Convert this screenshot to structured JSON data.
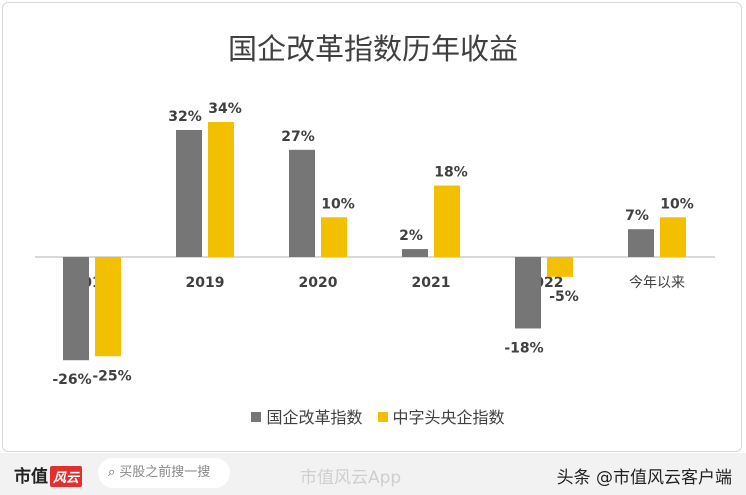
{
  "chart_data": {
    "type": "bar",
    "title": "国企改革指数历年收益",
    "categories": [
      "2018",
      "2019",
      "2020",
      "2021",
      "2022",
      "今年以来"
    ],
    "series": [
      {
        "name": "国企改革指数",
        "color": "#767676",
        "values": [
          -26,
          32,
          27,
          2,
          -18,
          7
        ],
        "labels": [
          "-26%",
          "32%",
          "27%",
          "2%",
          "-18%",
          "7%"
        ]
      },
      {
        "name": "中字头央企指数",
        "color": "#f2c000",
        "values": [
          -25,
          34,
          10,
          18,
          -5,
          10
        ],
        "labels": [
          "-25%",
          "34%",
          "10%",
          "18%",
          "-5%",
          "10%"
        ]
      }
    ],
    "ylabel": "",
    "xlabel": "",
    "unit": "%",
    "grid": false,
    "legend": "bottom"
  },
  "footer": {
    "logo": "市值",
    "logo_badge": "风云",
    "search_placeholder": "买股之前搜一搜",
    "search_icon": "search-icon",
    "watermark": "市值风云App",
    "source": "头条 @市值风云客户端"
  }
}
